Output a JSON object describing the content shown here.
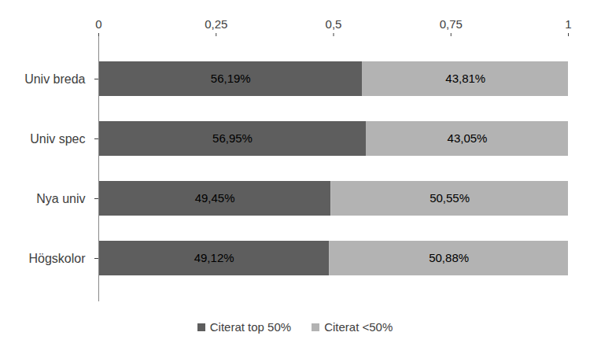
{
  "chart_data": {
    "type": "bar",
    "orientation": "horizontal",
    "stacked": true,
    "data_labels": true,
    "grid": false,
    "legend": "bottom",
    "categories": [
      "Univ breda",
      "Univ spec",
      "Nya univ",
      "Högskolor"
    ],
    "series": [
      {
        "name": "Citerat top 50%",
        "color": "#5e5e5e",
        "values": [
          0.5619,
          0.5695,
          0.4945,
          0.4912
        ],
        "value_labels": [
          "56,19%",
          "56,95%",
          "49,45%",
          "49,12%"
        ]
      },
      {
        "name": "Citerat <50%",
        "color": "#b3b3b3",
        "values": [
          0.4381,
          0.4305,
          0.5055,
          0.5088
        ],
        "value_labels": [
          "43,81%",
          "43,05%",
          "50,55%",
          "50,88%"
        ]
      }
    ],
    "xlim": [
      0,
      1
    ],
    "xticks": [
      0,
      {
        "value": 0.25,
        "label": "0,25"
      },
      {
        "value": 0.5,
        "label": "0,5"
      },
      {
        "value": 0.75,
        "label": "0,75"
      },
      1
    ]
  }
}
